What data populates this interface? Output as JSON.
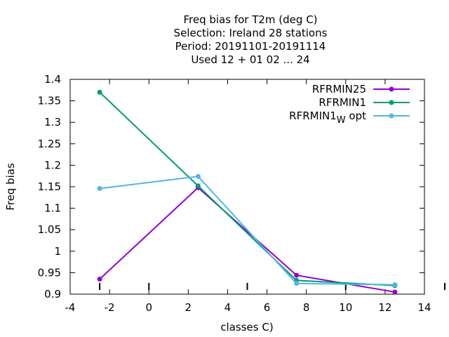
{
  "chart_data": {
    "type": "line",
    "title_lines": [
      "Freq bias  for T2m (deg C)",
      "Selection: Ireland     28 stations",
      "Period: 20191101-20191114",
      "Used  12 + 01 02 ... 24"
    ],
    "xlabel": "classes C)",
    "ylabel": "Freq bias",
    "xlim": [
      -4,
      14
    ],
    "ylim": [
      0.9,
      1.4
    ],
    "xticks": [
      "-4",
      "-2",
      "0",
      "2",
      "4",
      "6",
      "8",
      "10",
      "12",
      "14"
    ],
    "yticks": [
      "0.9",
      "0.95",
      "1",
      "1.05",
      "1.1",
      "1.15",
      "1.2",
      "1.25",
      "1.3",
      "1.35",
      "1.4"
    ],
    "grid": false,
    "legend_position": "top-right",
    "x": [
      -2.5,
      2.5,
      7.5,
      12.5
    ],
    "series": [
      {
        "name": "RFRMIN25",
        "color": "#9400d3",
        "values": [
          0.935,
          1.148,
          0.944,
          0.905
        ]
      },
      {
        "name": "RFRMIN1",
        "color": "#009e73",
        "values": [
          1.37,
          1.152,
          0.932,
          0.92
        ]
      },
      {
        "name_main": "RFRMIN1",
        "name_sub": "W",
        "name_tail": " opt",
        "color": "#56b4e9",
        "values": [
          1.146,
          1.174,
          0.925,
          0.922
        ]
      }
    ],
    "class_markers_x": [
      -2.5,
      0,
      5,
      10
    ]
  }
}
